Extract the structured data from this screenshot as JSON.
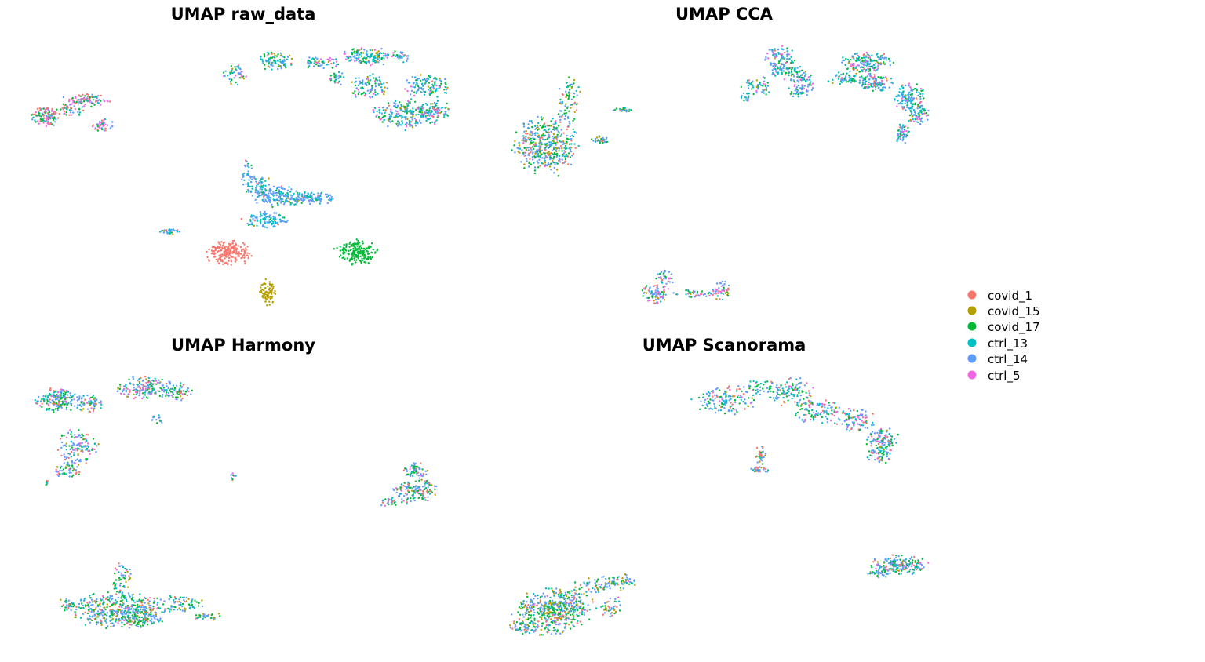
{
  "legend": {
    "items": [
      {
        "label": "covid_1",
        "color": "#F8766D"
      },
      {
        "label": "covid_15",
        "color": "#B79F00"
      },
      {
        "label": "covid_17",
        "color": "#00BA38"
      },
      {
        "label": "ctrl_13",
        "color": "#00BFC4"
      },
      {
        "label": "ctrl_14",
        "color": "#619CFF"
      },
      {
        "label": "ctrl_5",
        "color": "#F564E3"
      }
    ]
  },
  "chart_data": [
    {
      "type": "scatter",
      "title": "UMAP raw_data",
      "grid": false,
      "axes": "hidden",
      "clusters": [
        {
          "desc": "top-right arc",
          "weights": [
            0.03,
            0.08,
            0.2,
            0.3,
            0.29,
            0.1
          ]
        },
        {
          "desc": "left small group",
          "weights": [
            0.25,
            0.0,
            0.3,
            0.05,
            0.2,
            0.2
          ]
        },
        {
          "desc": "center mixed cluster",
          "weights": [
            0.05,
            0.02,
            0.05,
            0.4,
            0.48,
            0.0
          ]
        },
        {
          "desc": "covid_1 blob",
          "weights": [
            1,
            0,
            0,
            0,
            0,
            0
          ]
        },
        {
          "desc": "covid_15 blob",
          "weights": [
            0,
            1,
            0,
            0,
            0,
            0
          ]
        },
        {
          "desc": "covid_17 blob",
          "weights": [
            0,
            0,
            1,
            0,
            0,
            0
          ]
        }
      ]
    },
    {
      "type": "scatter",
      "title": "UMAP CCA",
      "grid": false,
      "axes": "hidden",
      "clusters": [
        {
          "desc": "left mixed cluster",
          "weights": [
            0.12,
            0.12,
            0.3,
            0.1,
            0.33,
            0.03
          ]
        },
        {
          "desc": "top-right arc",
          "weights": [
            0.05,
            0.03,
            0.2,
            0.25,
            0.35,
            0.12
          ]
        },
        {
          "desc": "bottom small group",
          "weights": [
            0.15,
            0.05,
            0.2,
            0.1,
            0.35,
            0.15
          ]
        }
      ]
    },
    {
      "type": "scatter",
      "title": "UMAP Harmony",
      "grid": false,
      "axes": "hidden",
      "clusters": [
        {
          "desc": "top-left arc",
          "weights": [
            0.1,
            0.05,
            0.25,
            0.15,
            0.33,
            0.12
          ]
        },
        {
          "desc": "right small group",
          "weights": [
            0.15,
            0.05,
            0.3,
            0.1,
            0.35,
            0.05
          ]
        },
        {
          "desc": "bottom large cluster",
          "weights": [
            0.1,
            0.1,
            0.3,
            0.15,
            0.32,
            0.03
          ]
        }
      ]
    },
    {
      "type": "scatter",
      "title": "UMAP Scanorama",
      "grid": false,
      "axes": "hidden",
      "clusters": [
        {
          "desc": "top arc",
          "weights": [
            0.08,
            0.04,
            0.2,
            0.2,
            0.35,
            0.13
          ]
        },
        {
          "desc": "small middle group",
          "weights": [
            0.25,
            0.1,
            0.15,
            0.1,
            0.4,
            0.0
          ]
        },
        {
          "desc": "right small group",
          "weights": [
            0.1,
            0.03,
            0.35,
            0.1,
            0.35,
            0.07
          ]
        },
        {
          "desc": "bottom-left large cluster",
          "weights": [
            0.1,
            0.15,
            0.3,
            0.1,
            0.33,
            0.02
          ]
        }
      ]
    }
  ]
}
